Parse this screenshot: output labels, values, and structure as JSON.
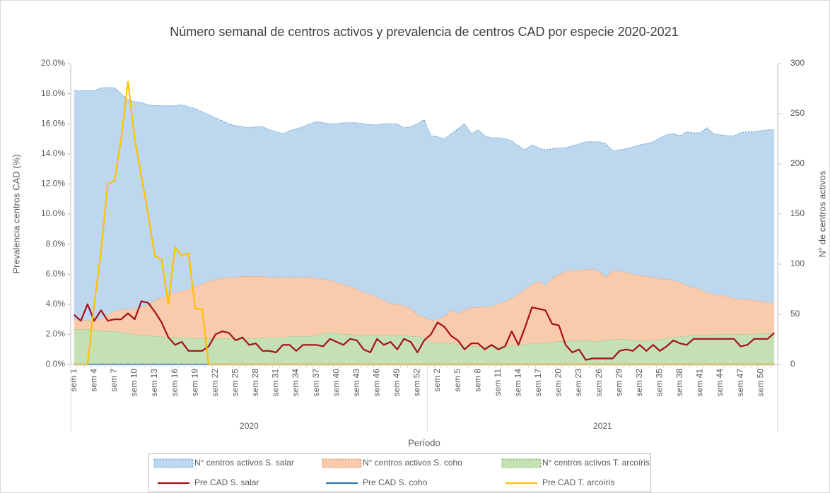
{
  "chart_data": {
    "type": "combo",
    "title": "Número semanal de centros activos y prevalencia de centros CAD por especie 2020-2021",
    "y_label": "Prevalencia centros CAD (%)",
    "y2_label": "N° de centros activos",
    "x_label": "Período",
    "groups": [
      {
        "name": "2020",
        "categories": [
          "sem 1",
          null,
          null,
          "sem 4",
          null,
          null,
          "sem 7",
          null,
          null,
          "sem 10",
          null,
          null,
          "sem 13",
          null,
          null,
          "sem 16",
          null,
          null,
          "sem 19",
          null,
          null,
          "sem 22",
          null,
          null,
          "sem 25",
          null,
          null,
          "sem 28",
          null,
          null,
          "sem 31",
          null,
          null,
          "sem 34",
          null,
          null,
          "sem 37",
          null,
          null,
          "sem 40",
          null,
          null,
          "sem 43",
          null,
          null,
          "sem 46",
          null,
          null,
          "sem 49",
          null,
          null,
          "sem 52",
          null
        ]
      },
      {
        "name": "2021",
        "categories": [
          null,
          "sem 2",
          null,
          null,
          "sem 5",
          null,
          null,
          "sem 8",
          null,
          null,
          "sem 11",
          null,
          null,
          "sem 14",
          null,
          null,
          "sem 17",
          null,
          null,
          "sem 20",
          null,
          null,
          "sem 23",
          null,
          null,
          "sem 26",
          null,
          null,
          "sem 29",
          null,
          null,
          "sem 32",
          null,
          null,
          "sem 35",
          null,
          null,
          "sem 38",
          null,
          null,
          "sem 41",
          null,
          null,
          "sem 44",
          null,
          null,
          "sem 47",
          null,
          null,
          "sem 50",
          null,
          null
        ]
      }
    ],
    "ylim": [
      0,
      20
    ],
    "yticks": [
      {
        "value": 0,
        "label": "0.0%"
      },
      {
        "value": 2,
        "label": "2.0%"
      },
      {
        "value": 4,
        "label": "4.0%"
      },
      {
        "value": 6,
        "label": "6.0%"
      },
      {
        "value": 8,
        "label": "8.0%"
      },
      {
        "value": 10,
        "label": "10.0%"
      },
      {
        "value": 12,
        "label": "12.0%"
      },
      {
        "value": 14,
        "label": "14.0%"
      },
      {
        "value": 16,
        "label": "16.0%"
      },
      {
        "value": 18,
        "label": "18.0%"
      },
      {
        "value": 20,
        "label": "20.0%"
      }
    ],
    "y2lim": [
      0,
      300
    ],
    "y2ticks": [
      0,
      50,
      100,
      150,
      200,
      250,
      300
    ],
    "stacked": true,
    "series": [
      {
        "name": "N° centros activos S. salar",
        "type": "area",
        "axis": "y2",
        "color": "#bdd7ee",
        "edge": "#5b9bd5",
        "values": [
          228,
          229,
          229,
          230,
          231,
          226,
          223,
          215,
          209,
          206,
          204,
          199,
          194,
          191,
          188,
          186,
          186,
          182,
          177,
          172,
          166,
          161,
          157,
          153,
          151,
          149,
          148,
          149,
          149,
          147,
          145,
          143,
          146,
          148,
          150,
          153,
          156,
          156,
          156,
          158,
          161,
          163,
          166,
          168,
          169,
          172,
          176,
          179,
          180,
          177,
          181,
          190,
          197,
          184,
          182,
          177,
          176,
          184,
          186,
          173,
          177,
          170,
          168,
          166,
          162,
          157,
          148,
          139,
          139,
          133,
          135,
          129,
          126,
          123,
          124,
          126,
          127,
          127,
          129,
          133,
          119,
          121,
          123,
          127,
          130,
          132,
          135,
          140,
          144,
          146,
          146,
          153,
          154,
          156,
          164,
          160,
          160,
          160,
          162,
          166,
          167,
          168,
          170,
          172,
          172
        ]
      },
      {
        "name": "N° centros activos S. coho",
        "type": "area",
        "axis": "y2",
        "color": "#f8cbad",
        "edge": "#c5855a",
        "values": [
          10,
          9,
          9,
          9,
          11,
          17,
          20,
          23,
          24,
          26,
          28,
          31,
          36,
          39,
          43,
          45,
          46,
          48,
          52,
          54,
          57,
          59,
          60,
          61,
          61,
          62,
          62,
          62,
          61,
          60,
          60,
          60,
          59,
          59,
          59,
          59,
          57,
          54,
          52,
          51,
          50,
          48,
          46,
          43,
          41,
          38,
          35,
          32,
          31,
          30,
          28,
          22,
          20,
          22,
          23,
          26,
          33,
          31,
          35,
          39,
          39,
          40,
          40,
          42,
          45,
          47,
          51,
          55,
          59,
          62,
          57,
          64,
          67,
          70,
          70,
          70,
          71,
          72,
          70,
          63,
          69,
          68,
          67,
          66,
          65,
          65,
          63,
          61,
          59,
          57,
          54,
          51,
          48,
          46,
          43,
          40,
          39,
          38,
          36,
          35,
          35,
          34,
          32,
          31,
          31
        ]
      },
      {
        "name": "N° centros activos T. arcoíris",
        "type": "area",
        "axis": "y2",
        "color": "#c5e0b4",
        "edge": "#70ad47",
        "values": [
          35,
          35,
          35,
          34,
          34,
          33,
          33,
          32,
          31,
          30,
          29,
          29,
          28,
          28,
          27,
          27,
          27,
          27,
          26,
          26,
          26,
          26,
          26,
          26,
          26,
          26,
          26,
          26,
          27,
          27,
          27,
          27,
          28,
          28,
          28,
          28,
          29,
          31,
          32,
          31,
          30,
          30,
          29,
          29,
          29,
          29,
          29,
          29,
          29,
          29,
          28,
          28,
          27,
          22,
          22,
          22,
          21,
          20,
          19,
          18,
          18,
          18,
          18,
          18,
          18,
          19,
          19,
          20,
          21,
          21,
          22,
          22,
          23,
          23,
          24,
          24,
          24,
          23,
          23,
          24,
          25,
          25,
          25,
          24,
          24,
          23,
          24,
          25,
          26,
          27,
          28,
          28,
          29,
          29,
          29,
          30,
          30,
          30,
          30,
          30,
          30,
          30,
          31,
          31,
          31
        ]
      },
      {
        "name": "Pre CAD S. salar",
        "type": "line",
        "axis": "y",
        "color": "#a50f15",
        "values": [
          3.3,
          2.9,
          4.0,
          2.9,
          3.6,
          2.9,
          3.0,
          3.0,
          3.4,
          3.0,
          4.2,
          4.1,
          3.5,
          2.8,
          1.8,
          1.3,
          1.5,
          0.9,
          0.9,
          0.9,
          1.2,
          2.0,
          2.2,
          2.1,
          1.6,
          1.8,
          1.3,
          1.4,
          0.9,
          0.9,
          0.8,
          1.3,
          1.3,
          0.9,
          1.3,
          1.3,
          1.3,
          1.2,
          1.7,
          1.5,
          1.3,
          1.7,
          1.6,
          1.0,
          0.8,
          1.7,
          1.3,
          1.5,
          1.0,
          1.7,
          1.5,
          0.8,
          1.6,
          2.0,
          2.8,
          2.5,
          1.9,
          1.6,
          1.0,
          1.4,
          1.4,
          1.0,
          1.3,
          1.0,
          1.2,
          2.2,
          1.3,
          2.5,
          3.8,
          3.7,
          3.6,
          2.7,
          2.6,
          1.3,
          0.8,
          1.0,
          0.3,
          0.4,
          0.4,
          0.4,
          0.4,
          0.9,
          1.0,
          0.9,
          1.3,
          0.9,
          1.3,
          0.9,
          1.2,
          1.6,
          1.4,
          1.3,
          1.7,
          1.7,
          1.7,
          1.7,
          1.7,
          1.7,
          1.7,
          1.2,
          1.3,
          1.7,
          1.7,
          1.7,
          2.1
        ]
      },
      {
        "name": "Pre CAD S. coho",
        "type": "line",
        "axis": "y",
        "color": "#2e75b6",
        "values": [
          0,
          0,
          0,
          0,
          0,
          0,
          0,
          0,
          0,
          0,
          0,
          0,
          0,
          0,
          0,
          0,
          0,
          0,
          0,
          0,
          0,
          0,
          0,
          0,
          0,
          0,
          0,
          0,
          0,
          0,
          0,
          0,
          0,
          0,
          0,
          0,
          0,
          0,
          0,
          0,
          0,
          0,
          0,
          0,
          0,
          0,
          0,
          0,
          0,
          0,
          0,
          0,
          0,
          0,
          0,
          0,
          0,
          0,
          0,
          0,
          0,
          0,
          0,
          0,
          0,
          0,
          0,
          0,
          0,
          0,
          0,
          0,
          0,
          0,
          0,
          0,
          0,
          0,
          0,
          0,
          0,
          0,
          0,
          0,
          0,
          0,
          0,
          0,
          0,
          0,
          0,
          0,
          0,
          0,
          0,
          0,
          0,
          0,
          0,
          0,
          0,
          0,
          0,
          0,
          0
        ]
      },
      {
        "name": "Pre CAD T. arcoíris",
        "type": "line",
        "axis": "y",
        "color": "#ffc000",
        "values": [
          0,
          0,
          0,
          4.0,
          7.5,
          12.0,
          12.2,
          15.0,
          18.8,
          15.0,
          12.5,
          10.0,
          7.2,
          7.0,
          4.0,
          7.8,
          7.2,
          7.4,
          3.7,
          3.7,
          0,
          0,
          0,
          0,
          0,
          0,
          0,
          0,
          0,
          0,
          0,
          0,
          0,
          0,
          0,
          0,
          0,
          0,
          0,
          0,
          0,
          0,
          0,
          0,
          0,
          0,
          0,
          0,
          0,
          0,
          0,
          0,
          0,
          0,
          0,
          0,
          0,
          0,
          0,
          0,
          0,
          0,
          0,
          0,
          0,
          0,
          0,
          0,
          0,
          0,
          0,
          0,
          0,
          0,
          0,
          0,
          0,
          0,
          0,
          0,
          0,
          0,
          0,
          0,
          0,
          0,
          0,
          0,
          0,
          0,
          0,
          0,
          0,
          0,
          0,
          0,
          0,
          0,
          0,
          0,
          0,
          0,
          0,
          0,
          0
        ]
      }
    ]
  }
}
